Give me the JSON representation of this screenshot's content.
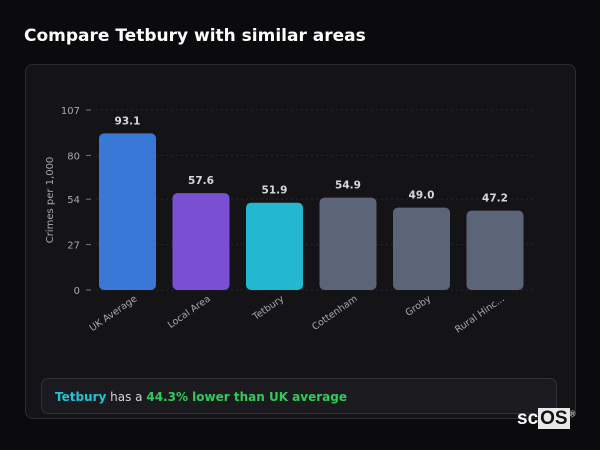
{
  "title": "Compare Tetbury with similar areas",
  "chart_data": {
    "type": "bar",
    "title": "",
    "xlabel": "",
    "ylabel": "Crimes per 1,000",
    "ylim": [
      0,
      107
    ],
    "yticks": [
      0,
      27,
      54,
      80,
      107
    ],
    "categories": [
      "UK Average",
      "Local Area",
      "Tetbury",
      "Cottenham",
      "Groby",
      "Rural Hinc..."
    ],
    "values": [
      93.1,
      57.6,
      51.9,
      54.9,
      49.0,
      47.2
    ],
    "value_labels": [
      "93.1",
      "57.6",
      "51.9",
      "54.9",
      "49.0",
      "47.2"
    ],
    "colors": [
      "#3a78d8",
      "#7a4fd4",
      "#22b8d0",
      "#5b6577",
      "#5b6577",
      "#5b6577"
    ],
    "grid": true
  },
  "summary": {
    "place": "Tetbury",
    "middle": " has a ",
    "highlight": "44.3% lower than UK average"
  },
  "watermark": {
    "prefix": "sc",
    "box": "OS",
    "mark": "®"
  }
}
